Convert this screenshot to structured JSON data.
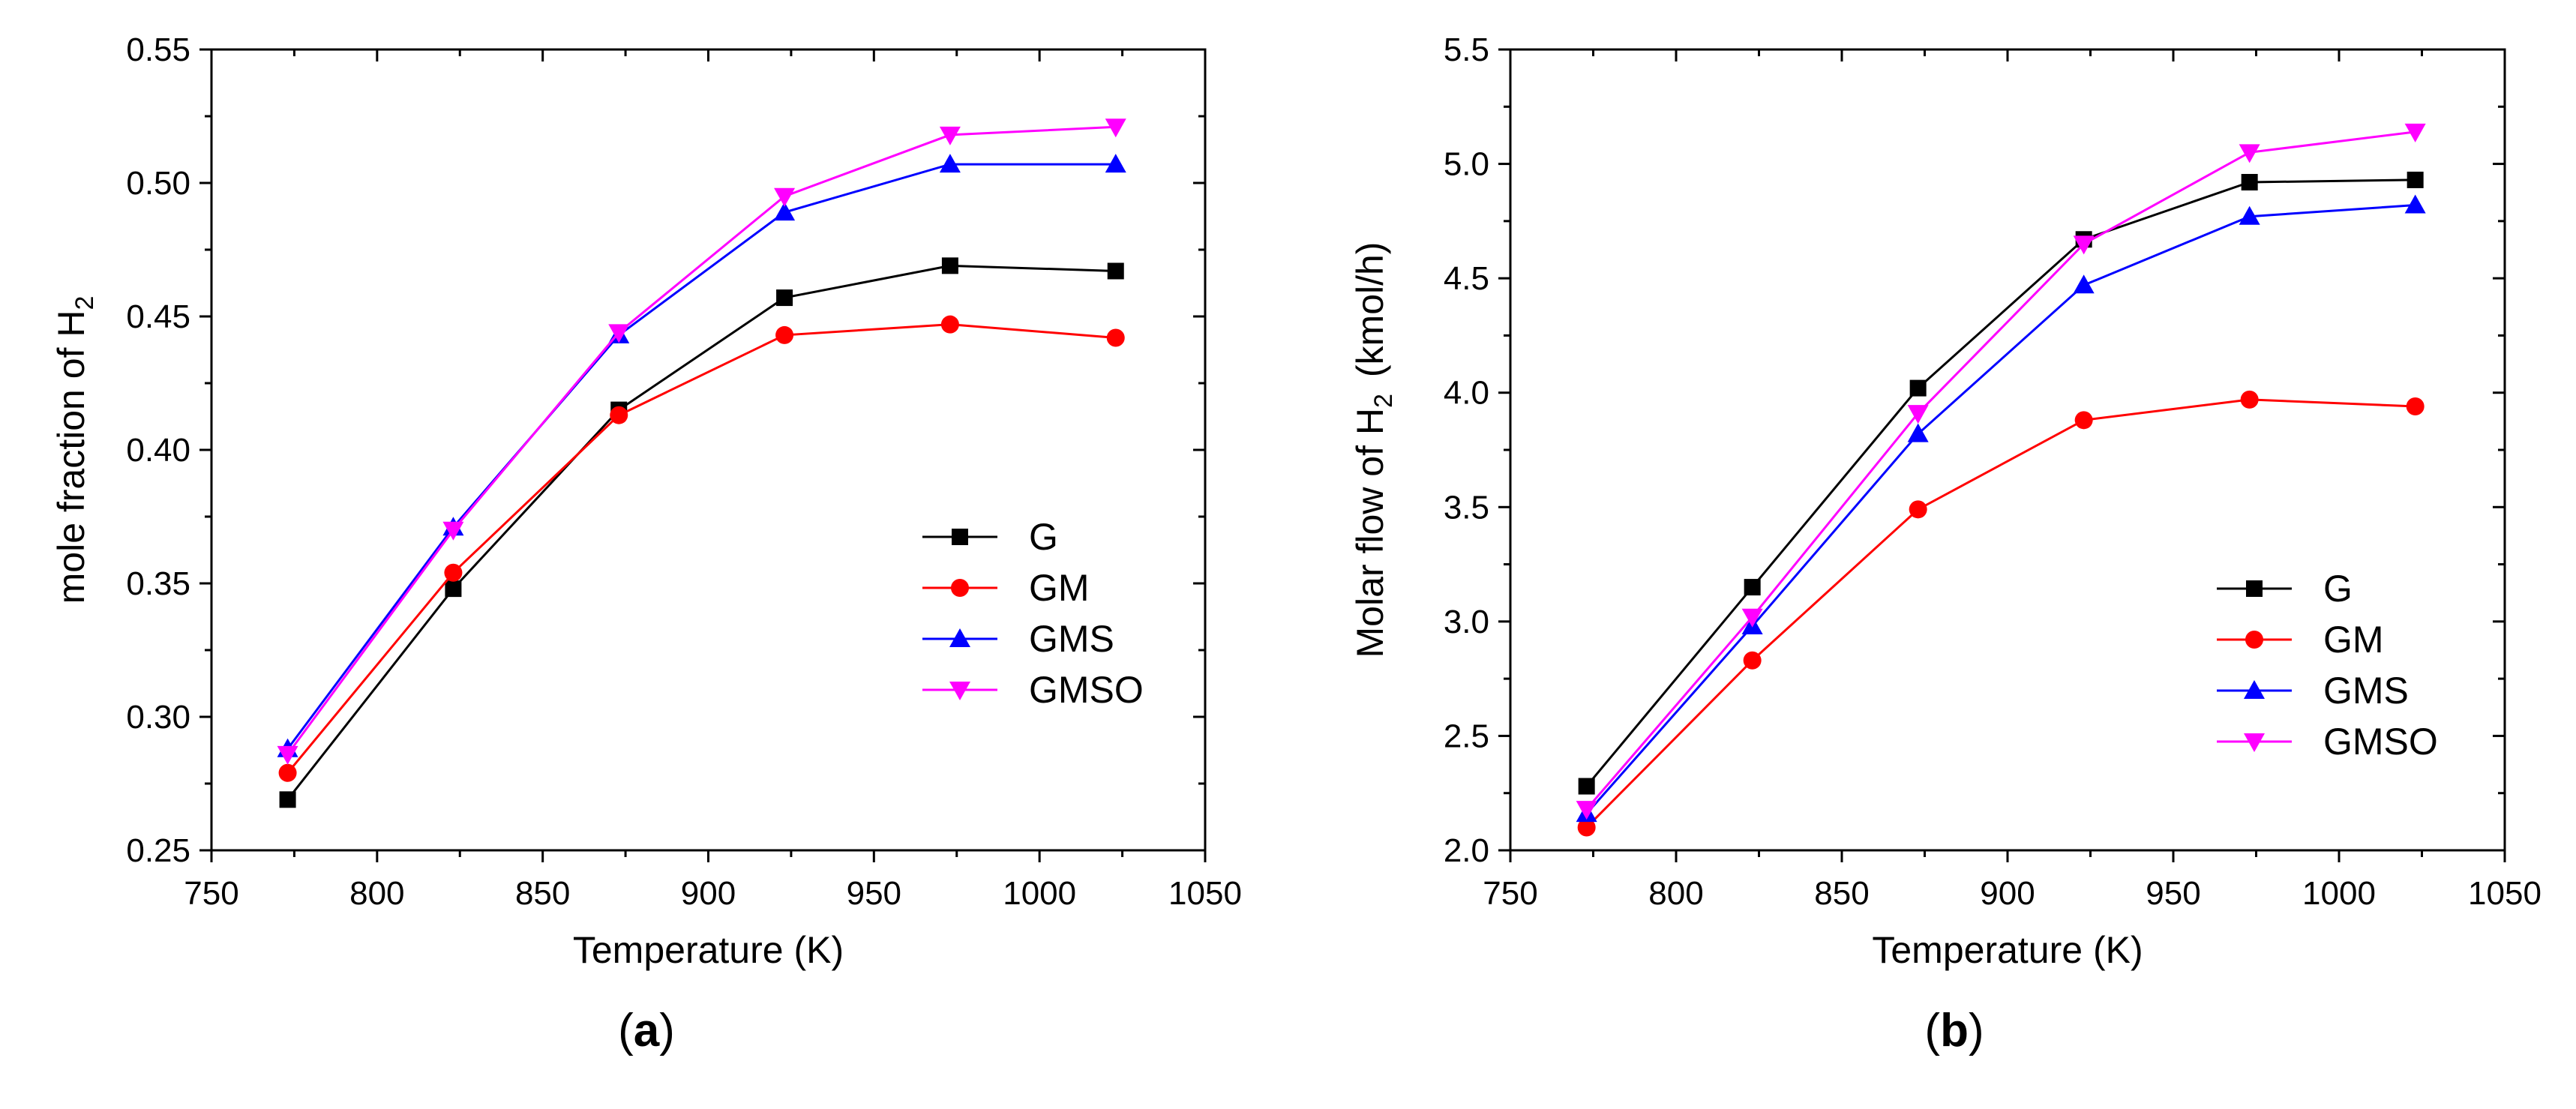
{
  "chart_data": [
    {
      "type": "line",
      "panel_label": "a",
      "title": "",
      "xlabel": "Temperature (K)",
      "ylabel": "mole fraction of H",
      "ylabel_sub": "2",
      "xlim": [
        750,
        1050
      ],
      "ylim": [
        0.25,
        0.55
      ],
      "x_ticks": [
        "750",
        "800",
        "850",
        "900",
        "950",
        "1000",
        "1050"
      ],
      "y_ticks": [
        "0.25",
        "0.30",
        "0.35",
        "0.40",
        "0.45",
        "0.50",
        "0.55"
      ],
      "x": [
        773,
        823,
        873,
        923,
        973,
        1023
      ],
      "legend_position": "bottom-right",
      "series": [
        {
          "name": "G",
          "color": "#000000",
          "marker": "square",
          "values": [
            0.269,
            0.348,
            0.415,
            0.457,
            0.469,
            0.467
          ]
        },
        {
          "name": "GM",
          "color": "#ff0000",
          "marker": "circle",
          "values": [
            0.279,
            0.354,
            0.413,
            0.443,
            0.447,
            0.442
          ]
        },
        {
          "name": "GMS",
          "color": "#0000ff",
          "marker": "triangle-up",
          "values": [
            0.288,
            0.371,
            0.443,
            0.489,
            0.507,
            0.507
          ]
        },
        {
          "name": "GMSO",
          "color": "#ff00ff",
          "marker": "triangle-down",
          "values": [
            0.286,
            0.37,
            0.444,
            0.495,
            0.518,
            0.521
          ]
        }
      ]
    },
    {
      "type": "line",
      "panel_label": "b",
      "title": "",
      "xlabel": "Temperature (K)",
      "ylabel": "Molar flow of H",
      "ylabel_sub": "2",
      "ylabel_suffix": "(kmol/h)",
      "xlim": [
        750,
        1050
      ],
      "ylim": [
        2.0,
        5.5
      ],
      "x_ticks": [
        "750",
        "800",
        "850",
        "900",
        "950",
        "1000",
        "1050"
      ],
      "y_ticks": [
        "2.0",
        "2.5",
        "3.0",
        "3.5",
        "4.0",
        "4.5",
        "5.0",
        "5.5"
      ],
      "x": [
        773,
        823,
        873,
        923,
        973,
        1023
      ],
      "legend_position": "bottom-right",
      "series": [
        {
          "name": "G",
          "color": "#000000",
          "marker": "square",
          "values": [
            2.28,
            3.15,
            4.02,
            4.67,
            4.92,
            4.93
          ]
        },
        {
          "name": "GM",
          "color": "#ff0000",
          "marker": "circle",
          "values": [
            2.1,
            2.83,
            3.49,
            3.88,
            3.97,
            3.94
          ]
        },
        {
          "name": "GMS",
          "color": "#0000ff",
          "marker": "triangle-up",
          "values": [
            2.16,
            2.98,
            3.82,
            4.47,
            4.77,
            4.82
          ]
        },
        {
          "name": "GMSO",
          "color": "#ff00ff",
          "marker": "triangle-down",
          "values": [
            2.18,
            3.02,
            3.91,
            4.65,
            5.05,
            5.14
          ]
        }
      ]
    }
  ]
}
